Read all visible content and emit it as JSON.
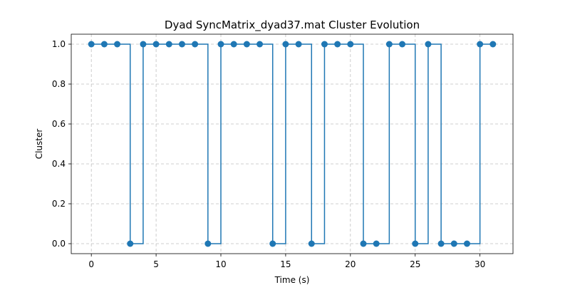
{
  "chart_data": {
    "type": "line",
    "title": "Dyad SyncMatrix_dyad37.mat Cluster Evolution",
    "xlabel": "Time (s)",
    "ylabel": "Cluster",
    "xlim": [
      -1.55,
      32.55
    ],
    "ylim": [
      -0.05,
      1.05
    ],
    "xticks": [
      0,
      5,
      10,
      15,
      20,
      25,
      30
    ],
    "yticks": [
      0.0,
      0.2,
      0.4,
      0.6,
      0.8,
      1.0
    ],
    "xtick_labels": [
      "0",
      "5",
      "10",
      "15",
      "20",
      "25",
      "30"
    ],
    "ytick_labels": [
      "0.0",
      "0.2",
      "0.4",
      "0.6",
      "0.8",
      "1.0"
    ],
    "grid": true,
    "line_style": "steps-post",
    "marker": "circle",
    "color": "#1f77b4",
    "series": [
      {
        "x": [
          0,
          1,
          2,
          3,
          4,
          5,
          6,
          7,
          8,
          9,
          10,
          11,
          12,
          13,
          14,
          15,
          16,
          17,
          18,
          19,
          20,
          21,
          22,
          23,
          24,
          25,
          26,
          27,
          28,
          29,
          30,
          31
        ],
        "values": [
          1,
          1,
          1,
          0,
          1,
          1,
          1,
          1,
          1,
          0,
          1,
          1,
          1,
          1,
          0,
          1,
          1,
          0,
          1,
          1,
          1,
          0,
          0,
          1,
          1,
          0,
          1,
          0,
          0,
          0,
          1,
          1
        ]
      }
    ]
  }
}
